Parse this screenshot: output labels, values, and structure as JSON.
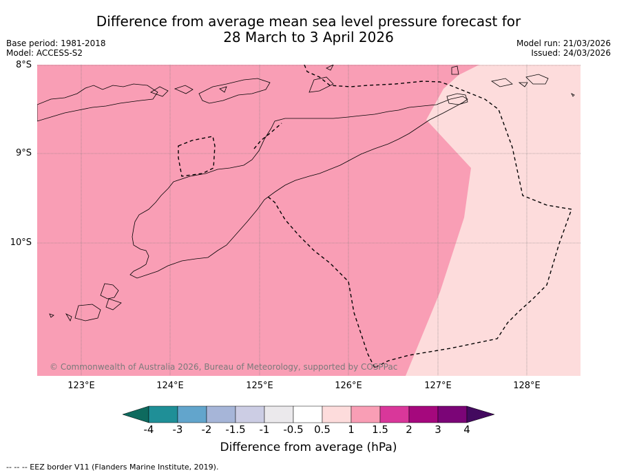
{
  "title": {
    "line1": "Difference from average mean sea level pressure forecast for",
    "line2": "28 March to 3 April 2026"
  },
  "meta": {
    "base_period": "Base period: 1981-2018",
    "model": "Model: ACCESS-S2",
    "model_run": "Model run: 21/03/2026",
    "issued": "Issued: 24/03/2026"
  },
  "map": {
    "lat_labels": [
      "8°S",
      "9°S",
      "10°S"
    ],
    "lon_labels": [
      "123°E",
      "124°E",
      "125°E",
      "126°E",
      "127°E",
      "128°E"
    ],
    "copyright": "© Commonwealth of Australia 2026, Bureau of Meteorology, supported by COSPPac",
    "fill_colors": {
      "band_1_to_1_5": "#f99eb5",
      "band_0_5_to_1": "#fddcdc"
    }
  },
  "colorbar": {
    "ticks": [
      "-4",
      "-3",
      "-2",
      "-1.5",
      "-1",
      "-0.5",
      "0.5",
      "1",
      "1.5",
      "2",
      "3",
      "4"
    ],
    "colors": [
      "#0e6a5e",
      "#1f8f97",
      "#62a5cc",
      "#a6b5d8",
      "#cccde4",
      "#ebe9ec",
      "#ffffff",
      "#fddcdc",
      "#f99eb5",
      "#d9379a",
      "#a5087d",
      "#7b0577",
      "#430a5f"
    ],
    "label": "Difference from average (hPa)"
  },
  "legend": {
    "text": "--  --  -- EEZ border V11 (Flanders Marine Institute, 2019)."
  }
}
